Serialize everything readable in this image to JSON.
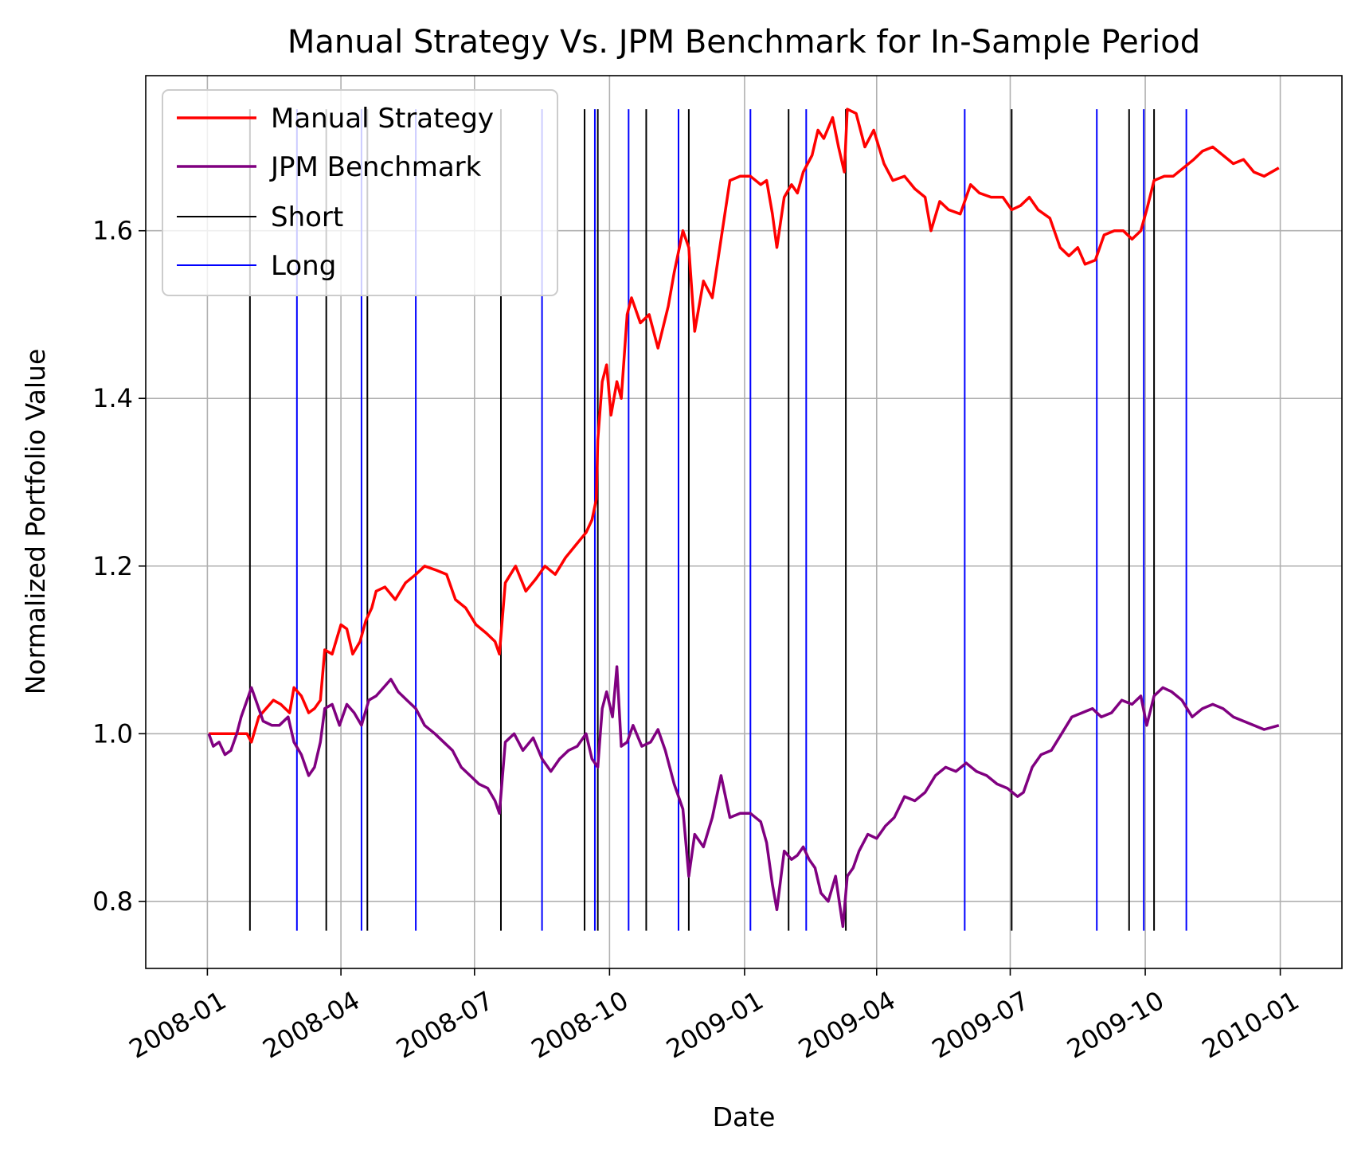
{
  "chart_data": {
    "type": "line",
    "title": "Manual Strategy Vs. JPM Benchmark for In-Sample Period",
    "xlabel": "Date",
    "ylabel": "Normalized Portfolio Value",
    "x_axis_type": "date",
    "xlim": [
      "2007-11-20",
      "2010-02-12"
    ],
    "ylim": [
      0.72,
      1.785
    ],
    "x_ticks": [
      "2008-01",
      "2008-04",
      "2008-07",
      "2008-10",
      "2009-01",
      "2009-04",
      "2009-07",
      "2009-10",
      "2010-01"
    ],
    "y_ticks": [
      0.8,
      1.0,
      1.2,
      1.4,
      1.6
    ],
    "y_tick_labels": [
      "0.8",
      "1.0",
      "1.2",
      "1.4",
      "1.6"
    ],
    "grid": true,
    "legend_position": "top-left",
    "series": [
      {
        "name": "Manual Strategy",
        "color": "#ff0000",
        "points": [
          [
            "2008-01-02",
            1.0
          ],
          [
            "2008-01-15",
            1.0
          ],
          [
            "2008-01-28",
            1.0
          ],
          [
            "2008-01-31",
            0.99
          ],
          [
            "2008-02-05",
            1.02
          ],
          [
            "2008-02-10",
            1.03
          ],
          [
            "2008-02-15",
            1.04
          ],
          [
            "2008-02-20",
            1.035
          ],
          [
            "2008-02-26",
            1.025
          ],
          [
            "2008-02-29",
            1.055
          ],
          [
            "2008-03-05",
            1.045
          ],
          [
            "2008-03-10",
            1.025
          ],
          [
            "2008-03-14",
            1.03
          ],
          [
            "2008-03-18",
            1.04
          ],
          [
            "2008-03-21",
            1.1
          ],
          [
            "2008-03-26",
            1.095
          ],
          [
            "2008-04-01",
            1.13
          ],
          [
            "2008-04-05",
            1.125
          ],
          [
            "2008-04-09",
            1.095
          ],
          [
            "2008-04-14",
            1.11
          ],
          [
            "2008-04-18",
            1.135
          ],
          [
            "2008-04-22",
            1.15
          ],
          [
            "2008-04-25",
            1.17
          ],
          [
            "2008-05-01",
            1.175
          ],
          [
            "2008-05-08",
            1.16
          ],
          [
            "2008-05-15",
            1.18
          ],
          [
            "2008-05-22",
            1.19
          ],
          [
            "2008-05-28",
            1.2
          ],
          [
            "2008-06-05",
            1.195
          ],
          [
            "2008-06-12",
            1.19
          ],
          [
            "2008-06-18",
            1.16
          ],
          [
            "2008-06-25",
            1.15
          ],
          [
            "2008-07-02",
            1.13
          ],
          [
            "2008-07-09",
            1.12
          ],
          [
            "2008-07-15",
            1.11
          ],
          [
            "2008-07-18",
            1.095
          ],
          [
            "2008-07-22",
            1.18
          ],
          [
            "2008-07-29",
            1.2
          ],
          [
            "2008-08-05",
            1.17
          ],
          [
            "2008-08-12",
            1.185
          ],
          [
            "2008-08-18",
            1.2
          ],
          [
            "2008-08-25",
            1.19
          ],
          [
            "2008-09-01",
            1.21
          ],
          [
            "2008-09-08",
            1.225
          ],
          [
            "2008-09-15",
            1.24
          ],
          [
            "2008-09-19",
            1.255
          ],
          [
            "2008-09-22",
            1.28
          ],
          [
            "2008-09-23",
            1.35
          ],
          [
            "2008-09-26",
            1.42
          ],
          [
            "2008-09-29",
            1.44
          ],
          [
            "2008-10-02",
            1.38
          ],
          [
            "2008-10-06",
            1.42
          ],
          [
            "2008-10-09",
            1.4
          ],
          [
            "2008-10-13",
            1.5
          ],
          [
            "2008-10-16",
            1.52
          ],
          [
            "2008-10-22",
            1.49
          ],
          [
            "2008-10-28",
            1.5
          ],
          [
            "2008-11-03",
            1.46
          ],
          [
            "2008-11-10",
            1.51
          ],
          [
            "2008-11-14",
            1.55
          ],
          [
            "2008-11-20",
            1.6
          ],
          [
            "2008-11-24",
            1.58
          ],
          [
            "2008-11-28",
            1.48
          ],
          [
            "2008-12-04",
            1.54
          ],
          [
            "2008-12-10",
            1.52
          ],
          [
            "2008-12-16",
            1.59
          ],
          [
            "2008-12-22",
            1.66
          ],
          [
            "2008-12-29",
            1.665
          ],
          [
            "2009-01-05",
            1.665
          ],
          [
            "2009-01-12",
            1.655
          ],
          [
            "2009-01-16",
            1.66
          ],
          [
            "2009-01-20",
            1.62
          ],
          [
            "2009-01-23",
            1.58
          ],
          [
            "2009-01-28",
            1.64
          ],
          [
            "2009-02-02",
            1.655
          ],
          [
            "2009-02-06",
            1.645
          ],
          [
            "2009-02-10",
            1.67
          ],
          [
            "2009-02-16",
            1.69
          ],
          [
            "2009-02-20",
            1.72
          ],
          [
            "2009-02-24",
            1.71
          ],
          [
            "2009-03-02",
            1.735
          ],
          [
            "2009-03-06",
            1.7
          ],
          [
            "2009-03-10",
            1.67
          ],
          [
            "2009-03-12",
            1.745
          ],
          [
            "2009-03-18",
            1.74
          ],
          [
            "2009-03-24",
            1.7
          ],
          [
            "2009-03-30",
            1.72
          ],
          [
            "2009-04-06",
            1.68
          ],
          [
            "2009-04-12",
            1.66
          ],
          [
            "2009-04-20",
            1.665
          ],
          [
            "2009-04-27",
            1.65
          ],
          [
            "2009-05-04",
            1.64
          ],
          [
            "2009-05-08",
            1.6
          ],
          [
            "2009-05-14",
            1.635
          ],
          [
            "2009-05-20",
            1.625
          ],
          [
            "2009-05-28",
            1.62
          ],
          [
            "2009-06-04",
            1.655
          ],
          [
            "2009-06-10",
            1.645
          ],
          [
            "2009-06-18",
            1.64
          ],
          [
            "2009-06-26",
            1.64
          ],
          [
            "2009-07-02",
            1.625
          ],
          [
            "2009-07-08",
            1.63
          ],
          [
            "2009-07-14",
            1.64
          ],
          [
            "2009-07-20",
            1.625
          ],
          [
            "2009-07-28",
            1.615
          ],
          [
            "2009-08-04",
            1.58
          ],
          [
            "2009-08-10",
            1.57
          ],
          [
            "2009-08-16",
            1.58
          ],
          [
            "2009-08-21",
            1.56
          ],
          [
            "2009-08-28",
            1.565
          ],
          [
            "2009-09-03",
            1.595
          ],
          [
            "2009-09-10",
            1.6
          ],
          [
            "2009-09-16",
            1.6
          ],
          [
            "2009-09-22",
            1.59
          ],
          [
            "2009-09-28",
            1.6
          ],
          [
            "2009-10-02",
            1.625
          ],
          [
            "2009-10-07",
            1.66
          ],
          [
            "2009-10-14",
            1.665
          ],
          [
            "2009-10-20",
            1.665
          ],
          [
            "2009-10-27",
            1.675
          ],
          [
            "2009-11-03",
            1.685
          ],
          [
            "2009-11-09",
            1.695
          ],
          [
            "2009-11-16",
            1.7
          ],
          [
            "2009-11-23",
            1.69
          ],
          [
            "2009-11-30",
            1.68
          ],
          [
            "2009-12-07",
            1.685
          ],
          [
            "2009-12-14",
            1.67
          ],
          [
            "2009-12-21",
            1.665
          ],
          [
            "2009-12-31",
            1.675
          ]
        ]
      },
      {
        "name": "JPM Benchmark",
        "color": "#800080",
        "points": [
          [
            "2008-01-02",
            1.0
          ],
          [
            "2008-01-05",
            0.985
          ],
          [
            "2008-01-09",
            0.99
          ],
          [
            "2008-01-13",
            0.975
          ],
          [
            "2008-01-17",
            0.98
          ],
          [
            "2008-01-21",
            1.0
          ],
          [
            "2008-01-24",
            1.02
          ],
          [
            "2008-01-28",
            1.04
          ],
          [
            "2008-01-31",
            1.055
          ],
          [
            "2008-02-04",
            1.035
          ],
          [
            "2008-02-08",
            1.015
          ],
          [
            "2008-02-14",
            1.01
          ],
          [
            "2008-02-19",
            1.01
          ],
          [
            "2008-02-25",
            1.02
          ],
          [
            "2008-02-29",
            0.99
          ],
          [
            "2008-03-05",
            0.975
          ],
          [
            "2008-03-10",
            0.95
          ],
          [
            "2008-03-14",
            0.96
          ],
          [
            "2008-03-18",
            0.99
          ],
          [
            "2008-03-21",
            1.03
          ],
          [
            "2008-03-26",
            1.035
          ],
          [
            "2008-03-31",
            1.01
          ],
          [
            "2008-04-05",
            1.035
          ],
          [
            "2008-04-10",
            1.025
          ],
          [
            "2008-04-15",
            1.01
          ],
          [
            "2008-04-20",
            1.04
          ],
          [
            "2008-04-25",
            1.045
          ],
          [
            "2008-04-30",
            1.055
          ],
          [
            "2008-05-05",
            1.065
          ],
          [
            "2008-05-10",
            1.05
          ],
          [
            "2008-05-16",
            1.04
          ],
          [
            "2008-05-22",
            1.03
          ],
          [
            "2008-05-28",
            1.01
          ],
          [
            "2008-06-04",
            1.0
          ],
          [
            "2008-06-10",
            0.99
          ],
          [
            "2008-06-16",
            0.98
          ],
          [
            "2008-06-22",
            0.96
          ],
          [
            "2008-06-28",
            0.95
          ],
          [
            "2008-07-04",
            0.94
          ],
          [
            "2008-07-10",
            0.935
          ],
          [
            "2008-07-15",
            0.92
          ],
          [
            "2008-07-18",
            0.905
          ],
          [
            "2008-07-22",
            0.99
          ],
          [
            "2008-07-28",
            1.0
          ],
          [
            "2008-08-03",
            0.98
          ],
          [
            "2008-08-10",
            0.995
          ],
          [
            "2008-08-16",
            0.97
          ],
          [
            "2008-08-22",
            0.955
          ],
          [
            "2008-08-28",
            0.97
          ],
          [
            "2008-09-03",
            0.98
          ],
          [
            "2008-09-09",
            0.985
          ],
          [
            "2008-09-15",
            1.0
          ],
          [
            "2008-09-19",
            0.97
          ],
          [
            "2008-09-23",
            0.96
          ],
          [
            "2008-09-26",
            1.03
          ],
          [
            "2008-09-29",
            1.05
          ],
          [
            "2008-10-03",
            1.02
          ],
          [
            "2008-10-06",
            1.08
          ],
          [
            "2008-10-09",
            0.985
          ],
          [
            "2008-10-13",
            0.99
          ],
          [
            "2008-10-17",
            1.01
          ],
          [
            "2008-10-23",
            0.985
          ],
          [
            "2008-10-29",
            0.99
          ],
          [
            "2008-11-03",
            1.005
          ],
          [
            "2008-11-08",
            0.98
          ],
          [
            "2008-11-14",
            0.94
          ],
          [
            "2008-11-20",
            0.91
          ],
          [
            "2008-11-24",
            0.83
          ],
          [
            "2008-11-28",
            0.88
          ],
          [
            "2008-12-04",
            0.865
          ],
          [
            "2008-12-10",
            0.9
          ],
          [
            "2008-12-16",
            0.95
          ],
          [
            "2008-12-22",
            0.9
          ],
          [
            "2008-12-29",
            0.905
          ],
          [
            "2009-01-05",
            0.905
          ],
          [
            "2009-01-12",
            0.895
          ],
          [
            "2009-01-16",
            0.87
          ],
          [
            "2009-01-20",
            0.82
          ],
          [
            "2009-01-23",
            0.79
          ],
          [
            "2009-01-28",
            0.86
          ],
          [
            "2009-02-02",
            0.85
          ],
          [
            "2009-02-06",
            0.855
          ],
          [
            "2009-02-10",
            0.865
          ],
          [
            "2009-02-14",
            0.85
          ],
          [
            "2009-02-18",
            0.84
          ],
          [
            "2009-02-22",
            0.81
          ],
          [
            "2009-02-27",
            0.8
          ],
          [
            "2009-03-04",
            0.83
          ],
          [
            "2009-03-09",
            0.77
          ],
          [
            "2009-03-12",
            0.83
          ],
          [
            "2009-03-16",
            0.84
          ],
          [
            "2009-03-20",
            0.86
          ],
          [
            "2009-03-26",
            0.88
          ],
          [
            "2009-04-01",
            0.875
          ],
          [
            "2009-04-07",
            0.89
          ],
          [
            "2009-04-13",
            0.9
          ],
          [
            "2009-04-20",
            0.925
          ],
          [
            "2009-04-27",
            0.92
          ],
          [
            "2009-05-04",
            0.93
          ],
          [
            "2009-05-11",
            0.95
          ],
          [
            "2009-05-18",
            0.96
          ],
          [
            "2009-05-25",
            0.955
          ],
          [
            "2009-06-01",
            0.965
          ],
          [
            "2009-06-08",
            0.955
          ],
          [
            "2009-06-15",
            0.95
          ],
          [
            "2009-06-22",
            0.94
          ],
          [
            "2009-06-29",
            0.935
          ],
          [
            "2009-07-06",
            0.925
          ],
          [
            "2009-07-10",
            0.93
          ],
          [
            "2009-07-16",
            0.96
          ],
          [
            "2009-07-22",
            0.975
          ],
          [
            "2009-07-29",
            0.98
          ],
          [
            "2009-08-05",
            1.0
          ],
          [
            "2009-08-12",
            1.02
          ],
          [
            "2009-08-19",
            1.025
          ],
          [
            "2009-08-26",
            1.03
          ],
          [
            "2009-09-01",
            1.02
          ],
          [
            "2009-09-08",
            1.025
          ],
          [
            "2009-09-15",
            1.04
          ],
          [
            "2009-09-22",
            1.035
          ],
          [
            "2009-09-28",
            1.045
          ],
          [
            "2009-10-02",
            1.01
          ],
          [
            "2009-10-07",
            1.045
          ],
          [
            "2009-10-13",
            1.055
          ],
          [
            "2009-10-19",
            1.05
          ],
          [
            "2009-10-26",
            1.04
          ],
          [
            "2009-11-02",
            1.02
          ],
          [
            "2009-11-09",
            1.03
          ],
          [
            "2009-11-16",
            1.035
          ],
          [
            "2009-11-23",
            1.03
          ],
          [
            "2009-11-30",
            1.02
          ],
          [
            "2009-12-07",
            1.015
          ],
          [
            "2009-12-14",
            1.01
          ],
          [
            "2009-12-21",
            1.005
          ],
          [
            "2009-12-31",
            1.01
          ]
        ]
      }
    ],
    "short_signals": {
      "name": "Short",
      "color": "#000000",
      "dates": [
        "2008-01-30",
        "2008-03-22",
        "2008-04-19",
        "2008-07-19",
        "2008-09-14",
        "2008-09-23",
        "2008-10-26",
        "2008-11-24",
        "2009-01-31",
        "2009-03-11",
        "2009-07-02",
        "2009-09-20",
        "2009-10-07"
      ]
    },
    "long_signals": {
      "name": "Long",
      "color": "#0000ff",
      "dates": [
        "2008-03-02",
        "2008-04-15",
        "2008-05-22",
        "2008-08-16",
        "2008-09-21",
        "2008-10-14",
        "2008-11-17",
        "2009-01-05",
        "2009-02-12",
        "2009-05-31",
        "2009-08-29",
        "2009-09-30",
        "2009-10-29"
      ]
    },
    "signal_line_yrange": [
      0.765,
      1.745
    ]
  }
}
